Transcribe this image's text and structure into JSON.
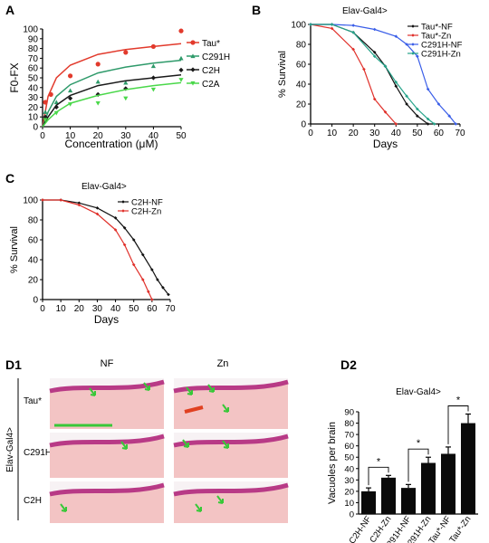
{
  "panel_labels": {
    "a": "A",
    "b": "B",
    "c": "C",
    "d1": "D1",
    "d2": "D2"
  },
  "histology": {
    "col_labels": [
      "NF",
      "Zn"
    ],
    "row_labels": [
      "Tau*",
      "C291H",
      "C2H"
    ],
    "side_label": "Elav-Gal4>"
  },
  "colors": {
    "tau": "#e23a2c",
    "c291h": "#2e9a6a",
    "c2h": "#1a1a1a",
    "c2a": "#4ad84a",
    "nf_black": "#111111",
    "zn_red": "#e0302a",
    "c291h_nf_blue": "#3a5ee8",
    "c291h_zn_teal": "#26a48a",
    "bar": "#0a0a0a",
    "tissue": "#f3c4c4",
    "tissue_edge": "#b83a86",
    "arrow": "#38c838"
  },
  "chart_data": [
    {
      "id": "A",
      "type": "scatter",
      "xlabel": "Concentration (μM)",
      "ylabel": "F0-FX",
      "xlim": [
        0,
        50
      ],
      "ylim": [
        0,
        100
      ],
      "xticks": [
        "0",
        "10",
        "20",
        "30",
        "40",
        "50"
      ],
      "yticks": [
        "0",
        "10",
        "20",
        "30",
        "40",
        "50",
        "60",
        "70",
        "80",
        "90",
        "100"
      ],
      "legend_position": "right",
      "series": [
        {
          "name": "Tau*",
          "marker": "circle",
          "points": [
            [
              1,
              25
            ],
            [
              3,
              33
            ],
            [
              10,
              52
            ],
            [
              20,
              64
            ],
            [
              30,
              76
            ],
            [
              40,
              82
            ],
            [
              50,
              98
            ]
          ],
          "fit": [
            [
              0,
              0
            ],
            [
              2,
              31
            ],
            [
              5,
              50
            ],
            [
              10,
              63
            ],
            [
              20,
              74
            ],
            [
              30,
              79
            ],
            [
              40,
              82
            ],
            [
              50,
              85
            ]
          ]
        },
        {
          "name": "C291H",
          "marker": "triangle",
          "points": [
            [
              1,
              15
            ],
            [
              5,
              25
            ],
            [
              10,
              37
            ],
            [
              20,
              46
            ],
            [
              30,
              45
            ],
            [
              40,
              62
            ],
            [
              50,
              70
            ]
          ],
          "fit": [
            [
              0,
              0
            ],
            [
              2,
              15
            ],
            [
              5,
              31
            ],
            [
              10,
              43
            ],
            [
              20,
              55
            ],
            [
              30,
              61
            ],
            [
              40,
              65
            ],
            [
              50,
              68
            ]
          ]
        },
        {
          "name": "C2H",
          "marker": "diamond",
          "points": [
            [
              1,
              10
            ],
            [
              5,
              20
            ],
            [
              10,
              29
            ],
            [
              20,
              33
            ],
            [
              30,
              39
            ],
            [
              40,
              50
            ],
            [
              50,
              58
            ]
          ],
          "fit": [
            [
              0,
              0
            ],
            [
              2,
              10
            ],
            [
              5,
              22
            ],
            [
              10,
              32
            ],
            [
              20,
              42
            ],
            [
              30,
              47
            ],
            [
              40,
              50
            ],
            [
              50,
              53
            ]
          ]
        },
        {
          "name": "C2A",
          "marker": "triangle-down",
          "points": [
            [
              1,
              7
            ],
            [
              5,
              14
            ],
            [
              10,
              23
            ],
            [
              20,
              24
            ],
            [
              30,
              29
            ],
            [
              40,
              38
            ],
            [
              50,
              48
            ]
          ],
          "fit": [
            [
              0,
              0
            ],
            [
              2,
              7
            ],
            [
              5,
              15
            ],
            [
              10,
              24
            ],
            [
              20,
              32
            ],
            [
              30,
              38
            ],
            [
              40,
              42
            ],
            [
              50,
              45
            ]
          ]
        }
      ]
    },
    {
      "id": "B",
      "type": "line",
      "title": "Elav-Gal4>",
      "xlabel": "Days",
      "ylabel": "% Survival",
      "xlim": [
        0,
        70
      ],
      "ylim": [
        0,
        100
      ],
      "xticks": [
        "0",
        "10",
        "20",
        "30",
        "40",
        "50",
        "60",
        "70"
      ],
      "yticks": [
        "0",
        "20",
        "40",
        "60",
        "80",
        "100"
      ],
      "legend_position": "top-right",
      "series": [
        {
          "name": "Tau*-NF",
          "color_key": "nf_black",
          "marker": "diamond",
          "points": [
            [
              0,
              100
            ],
            [
              10,
              100
            ],
            [
              20,
              92
            ],
            [
              30,
              72
            ],
            [
              35,
              58
            ],
            [
              40,
              38
            ],
            [
              45,
              20
            ],
            [
              50,
              8
            ],
            [
              55,
              0
            ]
          ]
        },
        {
          "name": "Tau*-Zn",
          "color_key": "zn_red",
          "marker": "diamond",
          "points": [
            [
              0,
              100
            ],
            [
              10,
              96
            ],
            [
              20,
              75
            ],
            [
              25,
              55
            ],
            [
              30,
              25
            ],
            [
              35,
              12
            ],
            [
              40,
              0
            ]
          ]
        },
        {
          "name": "C291H-NF",
          "color_key": "c291h_nf_blue",
          "marker": "diamond",
          "points": [
            [
              0,
              100
            ],
            [
              10,
              100
            ],
            [
              20,
              99
            ],
            [
              30,
              95
            ],
            [
              40,
              88
            ],
            [
              45,
              80
            ],
            [
              50,
              68
            ],
            [
              55,
              35
            ],
            [
              60,
              20
            ],
            [
              65,
              8
            ],
            [
              68,
              0
            ]
          ]
        },
        {
          "name": "C291H-Zn",
          "color_key": "c291h_zn_teal",
          "marker": "diamond",
          "points": [
            [
              0,
              100
            ],
            [
              10,
              100
            ],
            [
              20,
              92
            ],
            [
              30,
              68
            ],
            [
              35,
              58
            ],
            [
              40,
              42
            ],
            [
              45,
              28
            ],
            [
              50,
              15
            ],
            [
              55,
              5
            ],
            [
              58,
              0
            ]
          ]
        }
      ]
    },
    {
      "id": "C",
      "type": "line",
      "title": "Elav-Gal4>",
      "xlabel": "Days",
      "ylabel": "% Survival",
      "xlim": [
        0,
        70
      ],
      "ylim": [
        0,
        100
      ],
      "xticks": [
        "0",
        "10",
        "20",
        "30",
        "40",
        "50",
        "60",
        "70"
      ],
      "yticks": [
        "0",
        "20",
        "40",
        "60",
        "80",
        "100"
      ],
      "legend_position": "top-right",
      "series": [
        {
          "name": "C2H-NF",
          "color_key": "nf_black",
          "marker": "diamond",
          "points": [
            [
              0,
              100
            ],
            [
              10,
              100
            ],
            [
              20,
              97
            ],
            [
              30,
              92
            ],
            [
              40,
              82
            ],
            [
              45,
              72
            ],
            [
              50,
              60
            ],
            [
              55,
              45
            ],
            [
              60,
              30
            ],
            [
              63,
              20
            ],
            [
              66,
              12
            ],
            [
              69,
              5
            ]
          ]
        },
        {
          "name": "C2H-Zn",
          "color_key": "zn_red",
          "marker": "diamond",
          "points": [
            [
              0,
              100
            ],
            [
              10,
              100
            ],
            [
              20,
              95
            ],
            [
              30,
              86
            ],
            [
              40,
              70
            ],
            [
              45,
              55
            ],
            [
              50,
              35
            ],
            [
              55,
              20
            ],
            [
              58,
              8
            ],
            [
              60,
              0
            ]
          ]
        }
      ]
    },
    {
      "id": "D2",
      "type": "bar",
      "title": "Elav-Gal4>",
      "ylabel": "Vacuoles per brain",
      "ylim": [
        0,
        90
      ],
      "yticks": [
        "0",
        "10",
        "20",
        "30",
        "40",
        "50",
        "60",
        "70",
        "80",
        "90"
      ],
      "categories": [
        "C2H-NF",
        "C2H-Zn",
        "C291H-NF",
        "C291H-Zn",
        "Tau*-NF",
        "Tau*-Zn"
      ],
      "values": [
        20,
        32,
        23,
        45,
        53,
        80
      ],
      "errors": [
        3,
        2,
        3,
        5,
        6,
        8
      ],
      "significance": [
        {
          "pair": [
            0,
            1
          ],
          "label": "*"
        },
        {
          "pair": [
            2,
            3
          ],
          "label": "*"
        },
        {
          "pair": [
            4,
            5
          ],
          "label": "*"
        }
      ]
    }
  ]
}
